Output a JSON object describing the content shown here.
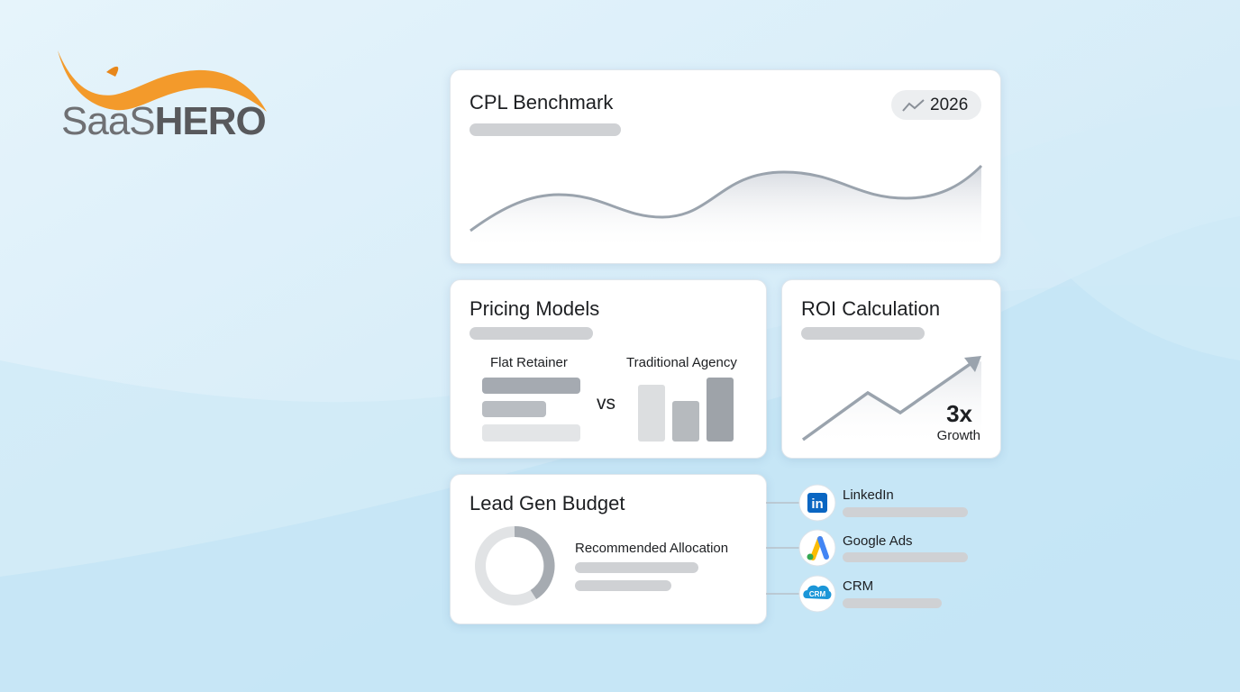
{
  "logo": {
    "part1": "SaaS",
    "part2": "HERO"
  },
  "cards": {
    "cpl": {
      "title": "CPL Benchmark",
      "badge": "2026"
    },
    "pricing": {
      "title": "Pricing Models",
      "left_label": "Flat Retainer",
      "right_label": "Traditional Agency",
      "versus": "vs"
    },
    "roi": {
      "title": "ROI Calculation",
      "multiplier": "3x",
      "caption": "Growth"
    },
    "budget": {
      "title": "Lead Gen Budget",
      "subtitle": "Recommended Allocation"
    }
  },
  "integrations": [
    {
      "name": "LinkedIn",
      "icon_text": "in"
    },
    {
      "name": "Google Ads"
    },
    {
      "name": "CRM",
      "icon_text": "CRM"
    }
  ]
}
